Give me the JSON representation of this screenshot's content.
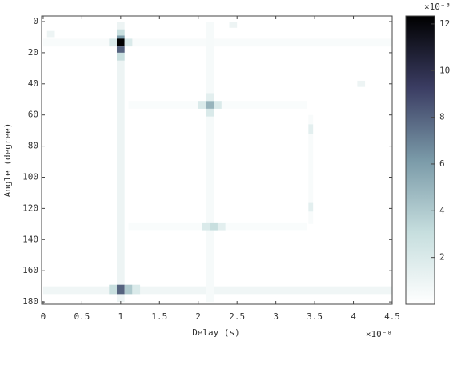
{
  "chart_data": {
    "type": "heatmap",
    "x_label": "Delay (s)",
    "y_label": "Angle (degree)",
    "x_offset_label": "×10⁻⁸",
    "color_offset_label": "×10⁻³",
    "xlim": [
      -0.02,
      4.5
    ],
    "xticks": [
      0,
      0.5,
      1,
      1.5,
      2,
      2.5,
      3,
      3.5,
      4,
      4.5
    ],
    "ylim": [
      -3.6,
      181.5
    ],
    "yticks": [
      0,
      20,
      40,
      60,
      80,
      100,
      120,
      140,
      160,
      180
    ],
    "clim": [
      0,
      12.34
    ],
    "cticks": [
      2,
      4,
      6,
      8,
      10,
      12
    ],
    "colormap": [
      "#ffffff",
      "#c6dede",
      "#7a9aa8",
      "#3b3d63",
      "#000000"
    ],
    "cells": [
      {
        "x": [
          0.95,
          1.05
        ],
        "y": [
          0,
          180
        ],
        "value": 1.0
      },
      {
        "x": [
          0,
          4.5
        ],
        "y": [
          170,
          175
        ],
        "value": 0.8
      },
      {
        "x": [
          0,
          4.5
        ],
        "y": [
          11,
          16
        ],
        "value": 0.4
      },
      {
        "x": [
          1.1,
          3.4
        ],
        "y": [
          51,
          56
        ],
        "value": 0.3
      },
      {
        "x": [
          1.1,
          3.4
        ],
        "y": [
          129,
          134
        ],
        "value": 0.3
      },
      {
        "x": [
          2.1,
          2.2
        ],
        "y": [
          0,
          180
        ],
        "value": 0.5
      },
      {
        "x": [
          3.42,
          3.48
        ],
        "y": [
          60,
          130
        ],
        "value": 0.4
      },
      {
        "x": [
          0.95,
          1.05
        ],
        "y": [
          5,
          9
        ],
        "value": 3
      },
      {
        "x": [
          0.95,
          1.05
        ],
        "y": [
          9,
          13
        ],
        "value": 6
      },
      {
        "x": [
          0.95,
          1.05
        ],
        "y": [
          11,
          16
        ],
        "value": 12.3
      },
      {
        "x": [
          0.95,
          1.05
        ],
        "y": [
          16,
          20
        ],
        "value": 8
      },
      {
        "x": [
          0.95,
          1.05
        ],
        "y": [
          20,
          25
        ],
        "value": 3
      },
      {
        "x": [
          0.85,
          0.95
        ],
        "y": [
          11,
          16
        ],
        "value": 2
      },
      {
        "x": [
          1.05,
          1.15
        ],
        "y": [
          11,
          16
        ],
        "value": 2
      },
      {
        "x": [
          0.95,
          1.05
        ],
        "y": [
          169,
          175
        ],
        "value": 8
      },
      {
        "x": [
          0.85,
          0.95
        ],
        "y": [
          169,
          175
        ],
        "value": 3
      },
      {
        "x": [
          1.05,
          1.15
        ],
        "y": [
          169,
          175
        ],
        "value": 4
      },
      {
        "x": [
          1.15,
          1.25
        ],
        "y": [
          169,
          175
        ],
        "value": 2
      },
      {
        "x": [
          2.1,
          2.2
        ],
        "y": [
          51,
          56
        ],
        "value": 5
      },
      {
        "x": [
          2.0,
          2.1
        ],
        "y": [
          51,
          56
        ],
        "value": 2
      },
      {
        "x": [
          2.2,
          2.3
        ],
        "y": [
          51,
          56
        ],
        "value": 2
      },
      {
        "x": [
          2.1,
          2.2
        ],
        "y": [
          56,
          61
        ],
        "value": 2
      },
      {
        "x": [
          2.1,
          2.2
        ],
        "y": [
          46,
          51
        ],
        "value": 1.5
      },
      {
        "x": [
          2.15,
          2.25
        ],
        "y": [
          129,
          134
        ],
        "value": 3
      },
      {
        "x": [
          2.05,
          2.15
        ],
        "y": [
          129,
          134
        ],
        "value": 2
      },
      {
        "x": [
          2.25,
          2.35
        ],
        "y": [
          129,
          134
        ],
        "value": 1.5
      },
      {
        "x": [
          3.42,
          3.48
        ],
        "y": [
          66,
          72
        ],
        "value": 1.5
      },
      {
        "x": [
          3.42,
          3.48
        ],
        "y": [
          116,
          122
        ],
        "value": 1.5
      },
      {
        "x": [
          2.4,
          2.5
        ],
        "y": [
          0,
          4
        ],
        "value": 1
      },
      {
        "x": [
          0.05,
          0.15
        ],
        "y": [
          6,
          10
        ],
        "value": 1
      },
      {
        "x": [
          4.05,
          4.15
        ],
        "y": [
          38,
          42
        ],
        "value": 1
      }
    ]
  }
}
